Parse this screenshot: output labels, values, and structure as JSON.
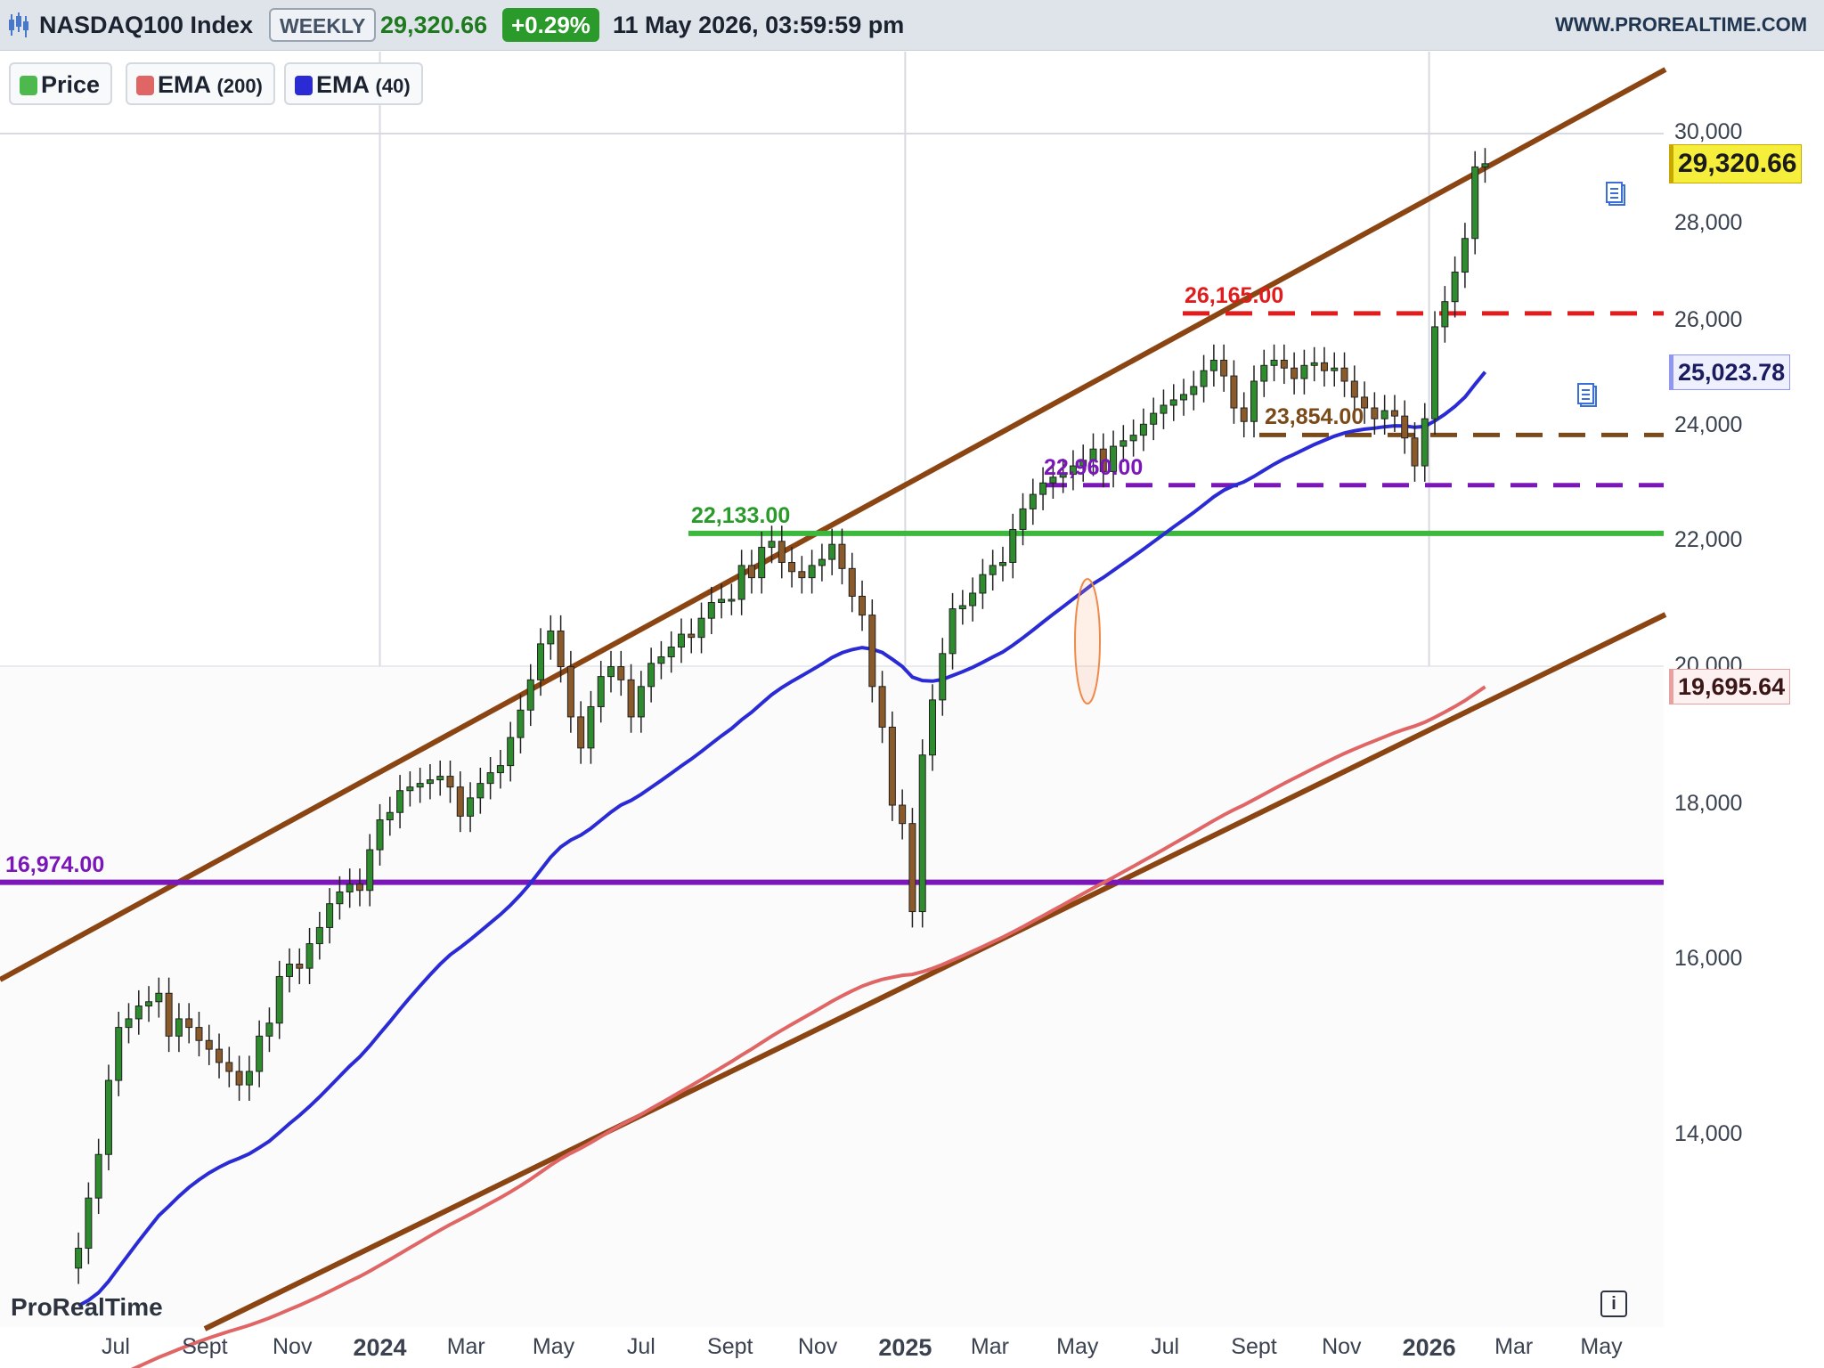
{
  "header": {
    "instrument": "NASDAQ100 Index",
    "period": "WEEKLY",
    "last_price": "29,320.66",
    "change": "+0.29%",
    "datetime": "11 May 2026, 03:59:59 pm",
    "website": "WWW.PROREALTIME.COM"
  },
  "legend": {
    "price": "Price",
    "ema_long": "EMA",
    "ema_long_param": "(200)",
    "ema_short": "EMA",
    "ema_short_param": "(40)"
  },
  "watermark": "ProRealTime",
  "info_glyph": "i",
  "colors": {
    "up": "#2e8b2e",
    "down": "#8b5a2b",
    "ema200": "#e06666",
    "ema40": "#2b2bd6",
    "channel": "#8b4513",
    "resistance": "#e01c1c",
    "support_brown": "#7a4a1a",
    "support_purple": "#7b16b8",
    "support_green": "#3cb83c",
    "last_price_bg": "#f5ee3a"
  },
  "icons": [
    "price-swatch-icon",
    "ema-swatch-icon",
    "news-note-icon",
    "info-icon",
    "candlestick-logo-icon"
  ],
  "chart_data": {
    "type": "candlestick",
    "scale": "log",
    "timeframe": "weekly",
    "ylim": [
      12500,
      31600
    ],
    "y_ticks": [
      14000,
      16000,
      18000,
      20000,
      22000,
      24000,
      26000,
      28000,
      30000
    ],
    "y_tick_labels": [
      "14,000",
      "16,000",
      "18,000",
      "20,000",
      "22,000",
      "24,000",
      "26,000",
      "28,000",
      "30,000"
    ],
    "x_tick_labels": [
      "Jul",
      "Sept",
      "Nov",
      "2024",
      "Mar",
      "May",
      "Jul",
      "Sept",
      "Nov",
      "2025",
      "Mar",
      "May",
      "Jul",
      "Sept",
      "Nov",
      "2026",
      "Mar",
      "May"
    ],
    "x_tick_dates": [
      "2023-07-01",
      "2023-09-01",
      "2023-11-01",
      "2024-01-01",
      "2024-03-01",
      "2024-05-01",
      "2024-07-01",
      "2024-09-01",
      "2024-11-01",
      "2025-01-01",
      "2025-03-01",
      "2025-05-01",
      "2025-07-01",
      "2025-09-01",
      "2025-11-01",
      "2026-01-01",
      "2026-03-01",
      "2026-05-01"
    ],
    "series": [
      {
        "name": "Price",
        "close": [
          12850,
          13350,
          13800,
          14600,
          15200,
          15300,
          15450,
          15500,
          15600,
          15100,
          15300,
          15200,
          15050,
          14950,
          14800,
          14700,
          14550,
          14700,
          15100,
          15250,
          15800,
          15950,
          15900,
          16200,
          16400,
          16700,
          16850,
          16950,
          16870,
          17400,
          17800,
          17900,
          18200,
          18250,
          18300,
          18350,
          18400,
          18250,
          17850,
          18100,
          18300,
          18450,
          18550,
          18950,
          19350,
          19800,
          20350,
          20550,
          20000,
          19250,
          18800,
          19400,
          19850,
          20000,
          19800,
          19250,
          19700,
          20050,
          20150,
          20300,
          20500,
          20450,
          20750,
          21000,
          21050,
          21050,
          21600,
          21400,
          21900,
          22000,
          21650,
          21500,
          21400,
          21600,
          21700,
          21950,
          21550,
          21100,
          20800,
          19700,
          19100,
          18000,
          17750,
          16600,
          18700,
          19500,
          20200,
          20900,
          20950,
          21150,
          21450,
          21600,
          21650,
          22200,
          22550,
          22800,
          23000,
          23100,
          23150,
          23300,
          23400,
          23600,
          23200,
          23650,
          23750,
          23850,
          24050,
          24250,
          24400,
          24500,
          24600,
          24750,
          25050,
          25250,
          24950,
          24350,
          24100,
          24850,
          25150,
          25250,
          25100,
          24900,
          25150,
          25200,
          25050,
          25100,
          24850,
          24550,
          24350,
          24150,
          24300,
          24200,
          23800,
          23300,
          24150,
          25900,
          26400,
          27000,
          27700,
          29250,
          29320.66
        ]
      }
    ],
    "ema_200": {
      "name": "EMA",
      "period": 200,
      "last": 19695.64
    },
    "ema_40": {
      "name": "EMA",
      "period": 40,
      "last": 25023.78
    },
    "levels": [
      {
        "label": "26,165.00",
        "value": 26165,
        "style": "dashed",
        "color": "#e01c1c"
      },
      {
        "label": "23,854.00",
        "value": 23854,
        "style": "dashed",
        "color": "#7a4a1a"
      },
      {
        "label": "22,960.00",
        "value": 22960,
        "style": "dashed",
        "color": "#7b16b8"
      },
      {
        "label": "22,133.00",
        "value": 22133,
        "style": "solid",
        "color": "#3cb83c"
      },
      {
        "label": "16,974.00",
        "value": 16974,
        "style": "solid",
        "color": "#7b16b8"
      }
    ],
    "price_tags": [
      {
        "label": "29,320.66",
        "value": 29320.66,
        "kind": "last-price"
      },
      {
        "label": "25,023.78",
        "value": 25023.78,
        "kind": "ema-40"
      },
      {
        "label": "19,695.64",
        "value": 19695.64,
        "kind": "ema-200"
      }
    ],
    "channel": {
      "description": "rising parallel trend channel",
      "color": "#8b4513"
    },
    "annotations": [
      {
        "type": "ellipse",
        "near": "2025-05"
      }
    ],
    "legend_position": "top-left",
    "grid": "partial"
  }
}
